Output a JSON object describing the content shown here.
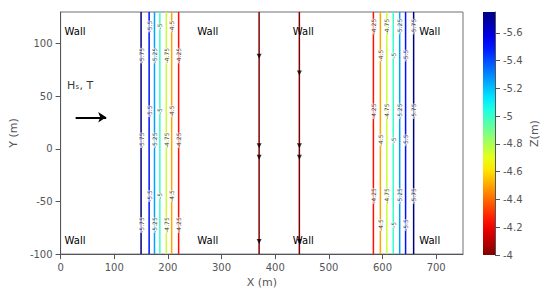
{
  "chart_data": {
    "type": "contour_lines",
    "xlabel": "X (m)",
    "ylabel": "Y (m)",
    "xlim": [
      0,
      750
    ],
    "ylim": [
      -100,
      130
    ],
    "xticks": [
      0,
      100,
      200,
      300,
      400,
      500,
      600,
      700
    ],
    "yticks": [
      -100,
      -50,
      0,
      50,
      100
    ],
    "grid": false,
    "lines": {
      "x": [
        150,
        165,
        175,
        185,
        197,
        207,
        220,
        370,
        445,
        583,
        596,
        608,
        620,
        632,
        643,
        658
      ],
      "z": [
        -5.75,
        -5.5,
        -5.25,
        -5.0,
        -4.75,
        -4.5,
        -4.25,
        -4.0,
        -4.0,
        -4.25,
        -4.5,
        -4.75,
        -5.0,
        -5.25,
        -5.5,
        -5.75
      ],
      "value_labels": [
        "-5.75",
        "-5.5",
        "-5.25",
        "-5",
        "-4.75",
        "-4.5",
        "-4.25",
        null,
        null,
        "-4.25",
        "-4.5",
        "-4.75",
        "-5",
        "-5.25",
        "-5.5",
        "-5.75"
      ]
    },
    "markers": {
      "x": [
        370,
        370,
        370,
        370,
        445,
        445,
        445,
        445
      ],
      "y": [
        88,
        3,
        -8,
        -88,
        72,
        3,
        -8,
        -88
      ],
      "marker": "triangle_down",
      "color": "#000000"
    },
    "colorbar": {
      "label": "Z(m)",
      "range": [
        -5.75,
        -4.0
      ],
      "ticks": [
        -4,
        -4.2,
        -4.4,
        -4.6,
        -4.8,
        -5,
        -5.2,
        -5.4,
        -5.6
      ]
    },
    "wall_labels": [
      "Wall",
      "Wall",
      "Wall",
      "Wall",
      "Wall",
      "Wall",
      "Wall",
      "Wall"
    ],
    "arrow": {
      "x": [
        28,
        85
      ],
      "y": [
        30,
        30
      ],
      "color": "#000000"
    },
    "arrow_label": {
      "text": "Hₛ, T",
      "x": 12,
      "y": 55
    }
  }
}
